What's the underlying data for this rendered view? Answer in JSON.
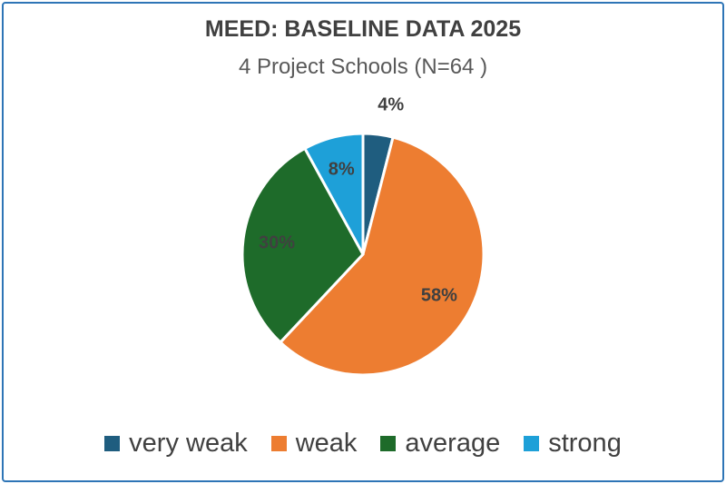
{
  "chart_data": {
    "type": "pie",
    "title": "MEED: BASELINE DATA 2025",
    "subtitle": "4 Project Schools (N=64 )",
    "slices": [
      {
        "label": "very weak",
        "value": 4,
        "display": "4%",
        "color": "#1f5d7f"
      },
      {
        "label": "weak",
        "value": 58,
        "display": "58%",
        "color": "#ed7d31"
      },
      {
        "label": "average",
        "value": 30,
        "display": "30%",
        "color": "#1e6b2a"
      },
      {
        "label": "strong",
        "value": 8,
        "display": "8%",
        "color": "#1ea0d8"
      }
    ],
    "legend_position": "bottom"
  }
}
